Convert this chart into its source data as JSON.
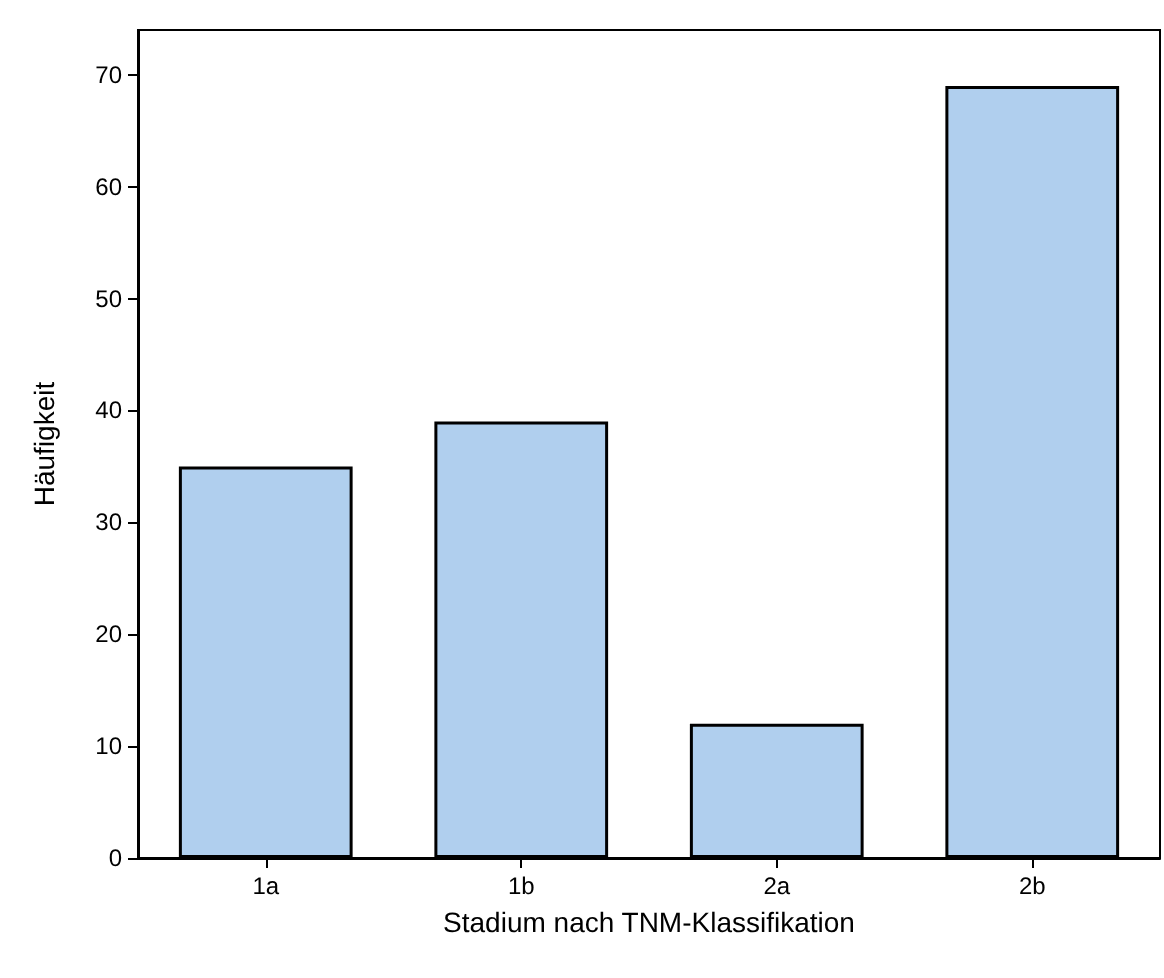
{
  "chart_data": {
    "type": "bar",
    "xlabel": "Stadium nach TNM-Klassifikation",
    "ylabel": "Häufigkeit",
    "categories": [
      "1a",
      "1b",
      "2a",
      "2b"
    ],
    "values": [
      35,
      39,
      12,
      69
    ],
    "color": "#b0cfee",
    "ylim": [
      0,
      74
    ],
    "yticks": [
      0,
      10,
      20,
      30,
      40,
      50,
      60,
      70
    ],
    "grid": false
  }
}
